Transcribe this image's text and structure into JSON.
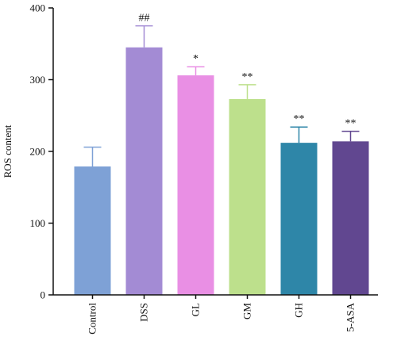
{
  "chart_data": {
    "type": "bar",
    "title": "",
    "xlabel": "",
    "ylabel": "ROS content",
    "ylim": [
      0,
      400
    ],
    "yticks": [
      0,
      100,
      200,
      300,
      400
    ],
    "grid": false,
    "categories": [
      "Control",
      "DSS",
      "GL",
      "GM",
      "GH",
      "5-ASA"
    ],
    "values": [
      179,
      345,
      306,
      273,
      212,
      214
    ],
    "errors": [
      27,
      30,
      12,
      20,
      22,
      14
    ],
    "annotations": [
      "",
      "##",
      "*",
      "**",
      "**",
      "**"
    ],
    "colors": [
      "#7ea1d6",
      "#a38bd4",
      "#e98fe4",
      "#bde08c",
      "#2e86a8",
      "#614790"
    ]
  }
}
